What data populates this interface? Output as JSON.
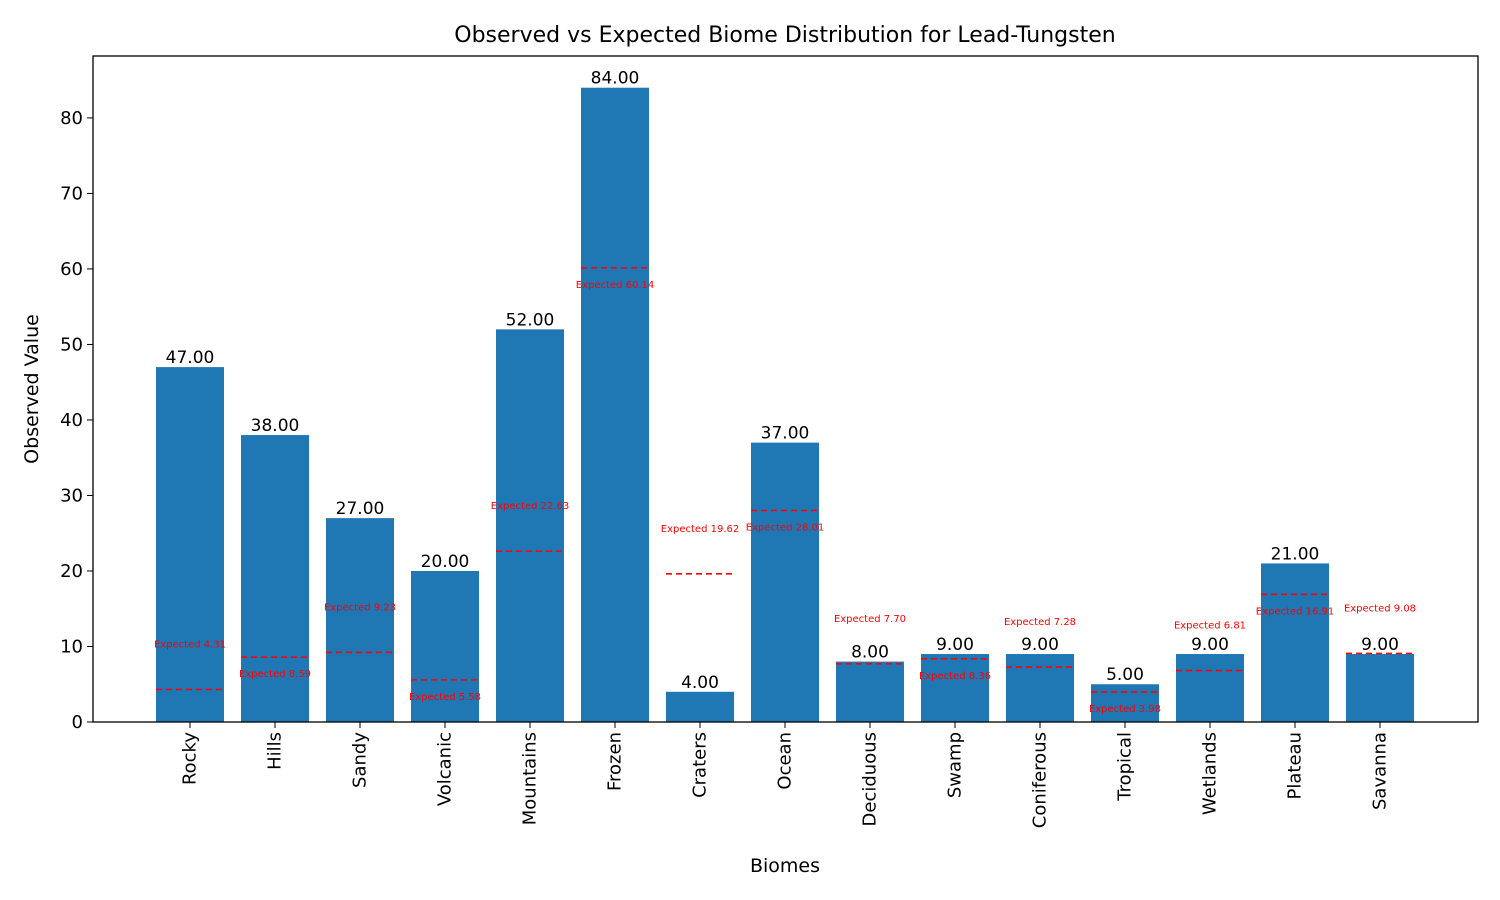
{
  "chart_data": {
    "type": "bar",
    "title": "Observed vs Expected Biome Distribution for Lead-Tungsten",
    "xlabel": "Biomes",
    "ylabel": "Observed Value",
    "ylim": [
      0,
      88.2
    ],
    "yticks": [
      0,
      10,
      20,
      30,
      40,
      50,
      60,
      70,
      80
    ],
    "categories": [
      "Rocky",
      "Hills",
      "Sandy",
      "Volcanic",
      "Mountains",
      "Frozen",
      "Craters",
      "Ocean",
      "Deciduous",
      "Swamp",
      "Coniferous",
      "Tropical",
      "Wetlands",
      "Plateau",
      "Savanna"
    ],
    "series": [
      {
        "values": [
          47,
          38,
          27,
          20,
          52,
          84,
          4,
          37,
          8,
          9,
          9,
          5,
          9,
          21,
          9
        ],
        "value_labels": [
          "47.00",
          "38.00",
          "27.00",
          "20.00",
          "52.00",
          "84.00",
          "4.00",
          "37.00",
          "8.00",
          "9.00",
          "9.00",
          "5.00",
          "9.00",
          "21.00",
          "9.00"
        ]
      },
      {
        "values": [
          4.31,
          8.59,
          9.23,
          5.58,
          22.63,
          60.14,
          19.62,
          28.01,
          7.7,
          8.36,
          7.28,
          3.98,
          6.81,
          16.91,
          9.08
        ],
        "value_labels": [
          "Expected 4.31",
          "Expected 8.59",
          "Expected 9.23",
          "Expected 5.58",
          "Expected 22.63",
          "Expected 60.14",
          "Expected 19.62",
          "Expected 28.01",
          "Expected 7.70",
          "Expected 8.36",
          "Expected 7.28",
          "Expected 3.98",
          "Expected 6.81",
          "Expected 16.91",
          "Expected 9.08"
        ]
      }
    ],
    "colors": {
      "bar": "#1f77b4",
      "expected": "#ff0000",
      "axis": "#000000"
    },
    "grid": false,
    "legend": "none"
  }
}
